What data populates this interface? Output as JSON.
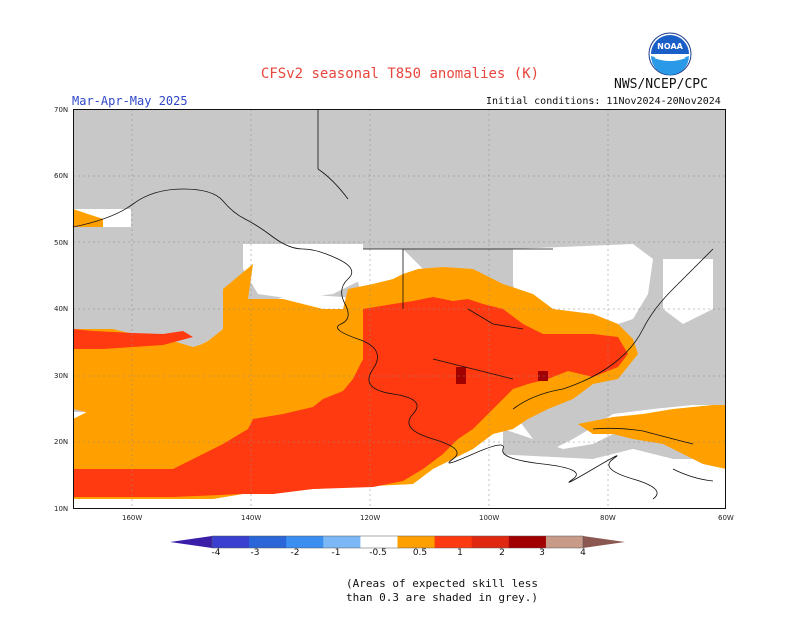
{
  "header": {
    "title": "CFSv2 seasonal T850 anomalies (K)",
    "agency": "NWS/NCEP/CPC",
    "season": "Mar-Apr-May 2025",
    "initial_conditions": "Initial conditions: 11Nov2024-20Nov2024",
    "logo_text": "NOAA"
  },
  "axes": {
    "lat_labels": [
      "70N",
      "60N",
      "50N",
      "40N",
      "30N",
      "20N",
      "10N"
    ],
    "lon_labels": [
      "160W",
      "140W",
      "120W",
      "100W",
      "80W",
      "60W"
    ]
  },
  "colorbar": {
    "labels": [
      "-4",
      "-3",
      "-2",
      "-1",
      "-0.5",
      "0.5",
      "1",
      "2",
      "3",
      "4"
    ],
    "colors": [
      "#3a1ea8",
      "#3a3fd0",
      "#2a66d8",
      "#3b8ff0",
      "#7cb8f6",
      "#ffffff",
      "#ffa000",
      "#ff3a10",
      "#e02810",
      "#a00000",
      "#c89a88",
      "#8a5850"
    ]
  },
  "legend_colors": {
    "grey": "#c8c8c8",
    "orange": "#ffa000",
    "red_orange": "#ff3a10",
    "red": "#f03a18",
    "dark_red": "#a00000"
  },
  "note": {
    "line1": "(Areas of expected skill less",
    "line2": "than 0.3 are shaded in grey.)"
  }
}
